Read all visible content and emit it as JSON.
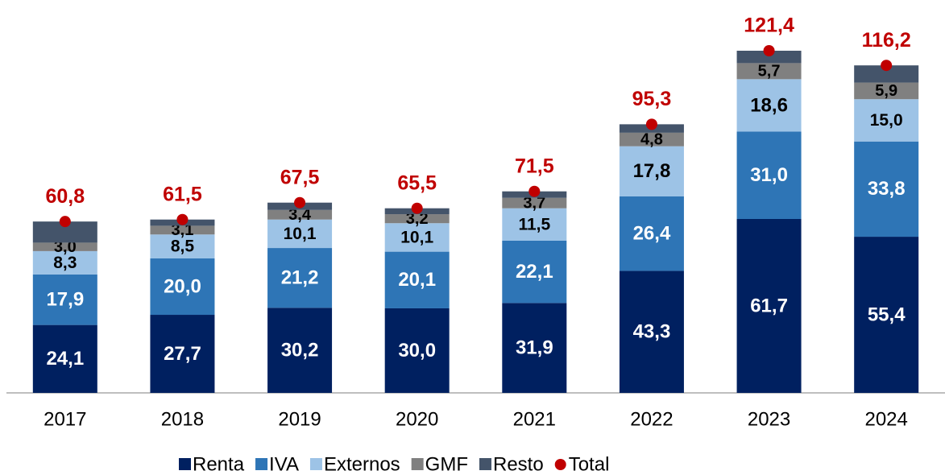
{
  "chart_data": {
    "type": "bar",
    "stacked": true,
    "categories": [
      "2017",
      "2018",
      "2019",
      "2020",
      "2021",
      "2022",
      "2023",
      "2024"
    ],
    "series": [
      {
        "name": "Renta",
        "color": "#002060",
        "values": [
          24.1,
          27.7,
          30.2,
          30.0,
          31.9,
          43.3,
          61.7,
          55.4
        ],
        "value_labels": [
          "24,1",
          "27,7",
          "30,2",
          "30,0",
          "31,9",
          "43,3",
          "61,7",
          "55,4"
        ]
      },
      {
        "name": "IVA",
        "color": "#2e75b6",
        "values": [
          17.9,
          20.0,
          21.2,
          20.1,
          22.1,
          26.4,
          31.0,
          33.8
        ],
        "value_labels": [
          "17,9",
          "20,0",
          "21,2",
          "20,1",
          "22,1",
          "26,4",
          "31,0",
          "33,8"
        ]
      },
      {
        "name": "Externos",
        "color": "#9dc3e6",
        "values": [
          8.3,
          8.5,
          10.1,
          10.1,
          11.5,
          17.8,
          18.6,
          15.0
        ],
        "value_labels": [
          "8,3",
          "8,5",
          "10,1",
          "10,1",
          "11,5",
          "17,8",
          "18,6",
          "15,0"
        ]
      },
      {
        "name": "GMF",
        "color": "#808080",
        "values": [
          3.0,
          3.1,
          3.4,
          3.2,
          3.7,
          4.8,
          5.7,
          5.9
        ],
        "value_labels": [
          "3,0",
          "3,1",
          "3,4",
          "3,2",
          "3,7",
          "4,8",
          "5,7",
          "5,9"
        ]
      },
      {
        "name": "Resto",
        "color": "#44546a",
        "values": [
          7.5,
          2.2,
          2.6,
          2.1,
          2.3,
          3.0,
          4.4,
          6.1
        ]
      },
      {
        "name": "Total",
        "type": "scatter",
        "color": "#c00000",
        "values": [
          60.8,
          61.5,
          67.5,
          65.5,
          71.5,
          95.3,
          121.4,
          116.2
        ],
        "value_labels": [
          "60,8",
          "61,5",
          "67,5",
          "65,5",
          "71,5",
          "95,3",
          "121,4",
          "116,2"
        ]
      }
    ]
  }
}
